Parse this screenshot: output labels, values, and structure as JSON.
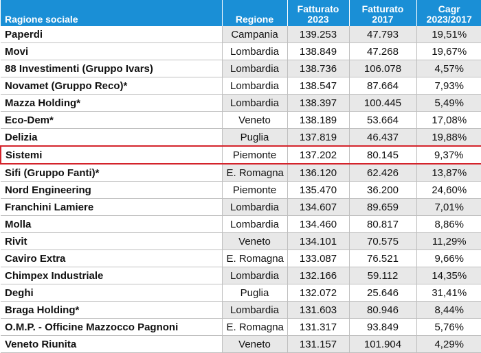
{
  "table": {
    "headers": {
      "name": "Ragione sociale",
      "region": "Regione",
      "revenue_2023_line1": "Fatturato",
      "revenue_2023_line2": "2023",
      "revenue_2017_line1": "Fatturato",
      "revenue_2017_line2": "2017",
      "cagr_line1": "Cagr",
      "cagr_line2": "2023/2017"
    },
    "highlight_color": "#d4232b",
    "header_color": "#1a8fd6",
    "rows": [
      {
        "name": "Paperdi",
        "region": "Campania",
        "rev2023": "139.253",
        "rev2017": "47.793",
        "cagr": "19,51%"
      },
      {
        "name": "Movi",
        "region": "Lombardia",
        "rev2023": "138.849",
        "rev2017": "47.268",
        "cagr": "19,67%"
      },
      {
        "name": "88 Investimenti (Gruppo Ivars)",
        "region": "Lombardia",
        "rev2023": "138.736",
        "rev2017": "106.078",
        "cagr": "4,57%"
      },
      {
        "name": "Novamet (Gruppo Reco)*",
        "region": "Lombardia",
        "rev2023": "138.547",
        "rev2017": "87.664",
        "cagr": "7,93%"
      },
      {
        "name": "Mazza Holding*",
        "region": "Lombardia",
        "rev2023": "138.397",
        "rev2017": "100.445",
        "cagr": "5,49%"
      },
      {
        "name": "Eco-Dem*",
        "region": "Veneto",
        "rev2023": "138.189",
        "rev2017": "53.664",
        "cagr": "17,08%"
      },
      {
        "name": "Delizia",
        "region": "Puglia",
        "rev2023": "137.819",
        "rev2017": "46.437",
        "cagr": "19,88%"
      },
      {
        "name": "Sistemi",
        "region": "Piemonte",
        "rev2023": "137.202",
        "rev2017": "80.145",
        "cagr": "9,37%",
        "highlight": true
      },
      {
        "name": "Sifi (Gruppo Fanti)*",
        "region": "E. Romagna",
        "rev2023": "136.120",
        "rev2017": "62.426",
        "cagr": "13,87%"
      },
      {
        "name": "Nord Engineering",
        "region": "Piemonte",
        "rev2023": "135.470",
        "rev2017": "36.200",
        "cagr": "24,60%"
      },
      {
        "name": "Franchini Lamiere",
        "region": "Lombardia",
        "rev2023": "134.607",
        "rev2017": "89.659",
        "cagr": "7,01%"
      },
      {
        "name": "Molla",
        "region": "Lombardia",
        "rev2023": "134.460",
        "rev2017": "80.817",
        "cagr": "8,86%"
      },
      {
        "name": "Rivit",
        "region": "Veneto",
        "rev2023": "134.101",
        "rev2017": "70.575",
        "cagr": "11,29%"
      },
      {
        "name": "Caviro Extra",
        "region": "E. Romagna",
        "rev2023": "133.087",
        "rev2017": "76.521",
        "cagr": "9,66%"
      },
      {
        "name": "Chimpex Industriale",
        "region": "Lombardia",
        "rev2023": "132.166",
        "rev2017": "59.112",
        "cagr": "14,35%"
      },
      {
        "name": "Deghi",
        "region": "Puglia",
        "rev2023": "132.072",
        "rev2017": "25.646",
        "cagr": "31,41%"
      },
      {
        "name": "Braga Holding*",
        "region": "Lombardia",
        "rev2023": "131.603",
        "rev2017": "80.946",
        "cagr": "8,44%"
      },
      {
        "name": "O.M.P. - Officine Mazzocco Pagnoni",
        "region": "E. Romagna",
        "rev2023": "131.317",
        "rev2017": "93.849",
        "cagr": "5,76%"
      },
      {
        "name": "Veneto Riunita",
        "region": "Veneto",
        "rev2023": "131.157",
        "rev2017": "101.904",
        "cagr": "4,29%"
      }
    ]
  }
}
